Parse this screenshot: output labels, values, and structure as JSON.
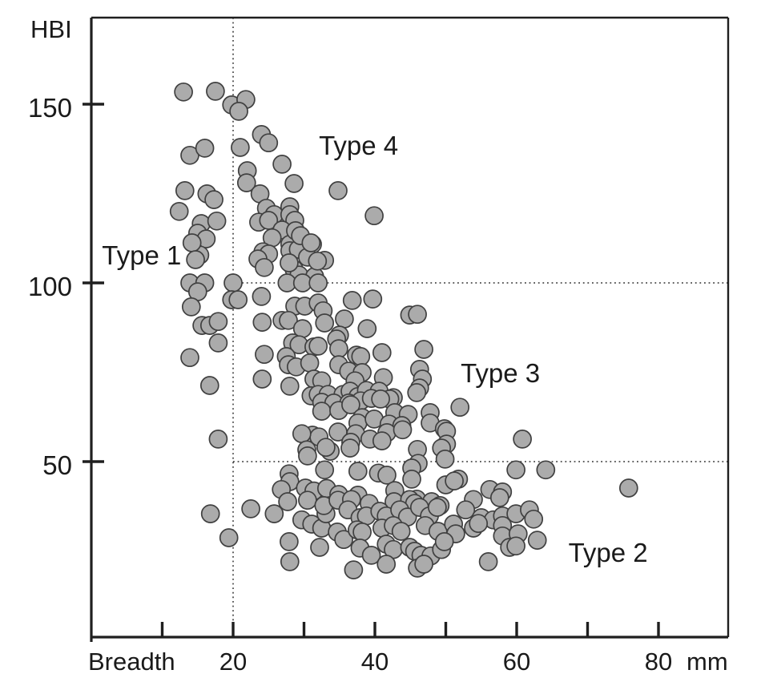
{
  "figure": {
    "y_axis_title": "HBI",
    "x_axis_title": "Breadth",
    "x_axis_unit": "mm"
  },
  "chart_data": {
    "type": "scatter",
    "title": "",
    "xlabel": "Breadth (mm)",
    "ylabel": "HBI",
    "xlim": [
      0,
      90
    ],
    "ylim": [
      0,
      174
    ],
    "x_ticks": [
      10,
      20,
      30,
      40,
      50,
      60,
      70,
      80
    ],
    "x_labeled_ticks": [
      20,
      40,
      60,
      80
    ],
    "y_ticks": [
      50,
      100,
      150
    ],
    "grid": {
      "style": "dotted",
      "vertical_x": [
        20
      ],
      "horizontal_y": [
        50,
        100
      ],
      "horizontal_start_x": 20
    },
    "legend": "none",
    "marker": {
      "shape": "circle",
      "radius_px": 11,
      "fill": "#ABABAB",
      "stroke": "#404040",
      "stroke_width": 1.7
    },
    "frame_color": "#1f1f1f",
    "annotations": [
      {
        "label": "Type 1",
        "x": 1.5,
        "y": 105.2
      },
      {
        "label": "Type 4",
        "x": 32.1,
        "y": 135.9
      },
      {
        "label": "Type 3",
        "x": 52.1,
        "y": 72.2
      },
      {
        "label": "Type 2",
        "x": 67.3,
        "y": 22.0
      }
    ],
    "points": [
      [
        13.0,
        153.4
      ],
      [
        17.5,
        153.6
      ],
      [
        19.8,
        149.8
      ],
      [
        21.8,
        151.3
      ],
      [
        20.8,
        148.0
      ],
      [
        24.0,
        141.5
      ],
      [
        25.0,
        139.2
      ],
      [
        13.9,
        135.7
      ],
      [
        16.0,
        137.7
      ],
      [
        21.0,
        137.9
      ],
      [
        26.9,
        133.2
      ],
      [
        22.0,
        131.4
      ],
      [
        21.9,
        128.0
      ],
      [
        23.8,
        124.9
      ],
      [
        28.6,
        127.8
      ],
      [
        34.8,
        125.8
      ],
      [
        39.9,
        118.8
      ],
      [
        24.7,
        120.9
      ],
      [
        25.8,
        119.1
      ],
      [
        28.0,
        121.3
      ],
      [
        23.6,
        117.0
      ],
      [
        25.0,
        117.5
      ],
      [
        28.0,
        119.1
      ],
      [
        28.7,
        117.5
      ],
      [
        26.9,
        114.8
      ],
      [
        25.5,
        112.6
      ],
      [
        29.3,
        113.0
      ],
      [
        28.0,
        110.8
      ],
      [
        29.8,
        110.3
      ],
      [
        24.2,
        108.7
      ],
      [
        25.0,
        108.1
      ],
      [
        28.0,
        109.0
      ],
      [
        29.2,
        109.4
      ],
      [
        31.2,
        110.8
      ],
      [
        32.9,
        106.3
      ],
      [
        23.5,
        106.7
      ],
      [
        24.4,
        104.3
      ],
      [
        28.6,
        103.8
      ],
      [
        29.3,
        102.2
      ],
      [
        31.5,
        101.8
      ],
      [
        27.9,
        105.6
      ],
      [
        30.5,
        107.2
      ],
      [
        31.9,
        106.1
      ],
      [
        13.2,
        125.8
      ],
      [
        16.3,
        124.9
      ],
      [
        17.3,
        123.3
      ],
      [
        12.4,
        120.0
      ],
      [
        15.5,
        116.6
      ],
      [
        17.7,
        117.3
      ],
      [
        15.0,
        113.9
      ],
      [
        16.2,
        112.3
      ],
      [
        15.3,
        107.8
      ],
      [
        28.8,
        114.6
      ],
      [
        29.5,
        113.2
      ],
      [
        31.0,
        111.2
      ],
      [
        14.2,
        111.2
      ],
      [
        14.7,
        106.5
      ],
      [
        13.9,
        100.0
      ],
      [
        16.0,
        100.0
      ],
      [
        20.0,
        100.0
      ],
      [
        15.0,
        97.5
      ],
      [
        14.1,
        93.3
      ],
      [
        19.8,
        95.3
      ],
      [
        20.7,
        95.3
      ],
      [
        15.6,
        88.1
      ],
      [
        16.7,
        88.1
      ],
      [
        17.9,
        89.2
      ],
      [
        17.9,
        83.2
      ],
      [
        13.9,
        79.1
      ],
      [
        16.7,
        71.3
      ],
      [
        17.9,
        56.3
      ],
      [
        27.6,
        100.0
      ],
      [
        29.8,
        100.0
      ],
      [
        32.0,
        100.0
      ],
      [
        24.0,
        96.2
      ],
      [
        36.8,
        95.1
      ],
      [
        39.7,
        95.5
      ],
      [
        28.7,
        93.5
      ],
      [
        30.1,
        93.5
      ],
      [
        32.0,
        94.4
      ],
      [
        32.7,
        92.2
      ],
      [
        44.9,
        91.0
      ],
      [
        46.0,
        91.2
      ],
      [
        24.1,
        89.0
      ],
      [
        26.9,
        89.5
      ],
      [
        27.8,
        89.5
      ],
      [
        29.8,
        87.2
      ],
      [
        32.9,
        88.8
      ],
      [
        35.7,
        89.9
      ],
      [
        38.9,
        87.2
      ],
      [
        35.0,
        85.4
      ],
      [
        28.4,
        83.2
      ],
      [
        29.3,
        82.7
      ],
      [
        31.4,
        82.1
      ],
      [
        32.0,
        82.3
      ],
      [
        34.6,
        84.3
      ],
      [
        34.9,
        81.6
      ],
      [
        37.4,
        79.8
      ],
      [
        38.0,
        79.4
      ],
      [
        41.0,
        80.5
      ],
      [
        46.9,
        81.4
      ],
      [
        27.5,
        79.4
      ],
      [
        27.8,
        77.1
      ],
      [
        28.9,
        76.5
      ],
      [
        30.8,
        77.6
      ],
      [
        34.9,
        77.1
      ],
      [
        36.3,
        75.3
      ],
      [
        38.2,
        74.9
      ],
      [
        46.3,
        75.8
      ],
      [
        31.4,
        73.1
      ],
      [
        32.5,
        72.6
      ],
      [
        37.2,
        72.6
      ],
      [
        24.4,
        80.0
      ],
      [
        24.1,
        73.1
      ],
      [
        28.0,
        71.1
      ],
      [
        41.2,
        73.5
      ],
      [
        46.7,
        73.1
      ],
      [
        46.3,
        70.6
      ],
      [
        42.6,
        67.9
      ],
      [
        31.0,
        68.4
      ],
      [
        32.0,
        68.8
      ],
      [
        33.4,
        68.8
      ],
      [
        35.5,
        68.8
      ],
      [
        36.5,
        69.7
      ],
      [
        37.6,
        68.2
      ],
      [
        38.8,
        69.9
      ],
      [
        40.6,
        69.7
      ],
      [
        42.1,
        67.5
      ],
      [
        45.9,
        69.3
      ],
      [
        32.5,
        66.6
      ],
      [
        34.2,
        66.4
      ],
      [
        36.3,
        66.4
      ],
      [
        38.0,
        67.0
      ],
      [
        39.5,
        67.7
      ],
      [
        40.8,
        67.5
      ],
      [
        52.0,
        65.2
      ],
      [
        32.5,
        64.1
      ],
      [
        34.9,
        64.3
      ],
      [
        36.6,
        65.9
      ],
      [
        42.8,
        63.7
      ],
      [
        44.7,
        63.2
      ],
      [
        47.8,
        63.7
      ],
      [
        38.2,
        62.3
      ],
      [
        37.6,
        60.8
      ],
      [
        39.9,
        61.9
      ],
      [
        42.0,
        60.5
      ],
      [
        43.8,
        60.1
      ],
      [
        47.8,
        60.8
      ],
      [
        41.7,
        58.1
      ],
      [
        43.9,
        58.9
      ],
      [
        49.8,
        59.2
      ],
      [
        34.8,
        58.3
      ],
      [
        37.3,
        57.8
      ],
      [
        31.2,
        57.4
      ],
      [
        32.1,
        56.9
      ],
      [
        29.7,
        57.8
      ],
      [
        36.6,
        55.4
      ],
      [
        39.3,
        56.3
      ],
      [
        41.0,
        55.8
      ],
      [
        50.1,
        58.5
      ],
      [
        50.1,
        54.9
      ],
      [
        60.8,
        56.3
      ],
      [
        36.5,
        53.8
      ],
      [
        46.0,
        53.4
      ],
      [
        49.4,
        53.8
      ],
      [
        30.4,
        53.3
      ],
      [
        33.7,
        52.9
      ],
      [
        30.5,
        51.6
      ],
      [
        33.1,
        54.0
      ],
      [
        49.9,
        50.7
      ],
      [
        46.1,
        49.5
      ],
      [
        45.2,
        48.2
      ],
      [
        37.6,
        47.3
      ],
      [
        40.5,
        46.8
      ],
      [
        41.7,
        46.2
      ],
      [
        32.9,
        47.7
      ],
      [
        27.9,
        46.6
      ],
      [
        28.0,
        44.4
      ],
      [
        26.8,
        42.2
      ],
      [
        30.2,
        42.6
      ],
      [
        31.4,
        41.8
      ],
      [
        33.2,
        42.5
      ],
      [
        45.2,
        45.1
      ],
      [
        51.8,
        45.1
      ],
      [
        59.9,
        47.7
      ],
      [
        64.1,
        47.7
      ],
      [
        56.2,
        42.2
      ],
      [
        58.0,
        41.5
      ],
      [
        50.0,
        43.5
      ],
      [
        51.2,
        44.6
      ],
      [
        42.8,
        41.9
      ],
      [
        34.9,
        40.8
      ],
      [
        37.6,
        40.6
      ],
      [
        45.9,
        39.5
      ],
      [
        75.8,
        42.6
      ],
      [
        16.8,
        35.4
      ],
      [
        19.4,
        28.7
      ],
      [
        22.5,
        36.8
      ],
      [
        25.8,
        35.4
      ],
      [
        27.7,
        38.8
      ],
      [
        28.0,
        22.0
      ],
      [
        27.9,
        27.6
      ],
      [
        29.7,
        33.7
      ],
      [
        31.1,
        32.5
      ],
      [
        32.2,
        26.0
      ],
      [
        32.5,
        31.4
      ],
      [
        33.1,
        35.4
      ],
      [
        30.5,
        39.2
      ],
      [
        32.8,
        37.7
      ],
      [
        34.8,
        39.2
      ],
      [
        36.7,
        39.4
      ],
      [
        39.2,
        38.3
      ],
      [
        42.7,
        38.8
      ],
      [
        44.9,
        39.4
      ],
      [
        45.6,
        38.3
      ],
      [
        48.0,
        38.8
      ],
      [
        53.9,
        39.4
      ],
      [
        57.6,
        39.9
      ],
      [
        49.2,
        37.7
      ],
      [
        36.2,
        36.5
      ],
      [
        37.9,
        34.3
      ],
      [
        38.8,
        34.8
      ],
      [
        40.7,
        36.1
      ],
      [
        41.6,
        34.8
      ],
      [
        43.5,
        36.5
      ],
      [
        44.6,
        34.5
      ],
      [
        46.3,
        37.2
      ],
      [
        47.7,
        34.8
      ],
      [
        48.8,
        37.2
      ],
      [
        52.8,
        36.5
      ],
      [
        55.0,
        34.3
      ],
      [
        56.7,
        33.7
      ],
      [
        58.0,
        34.8
      ],
      [
        59.9,
        35.4
      ],
      [
        61.8,
        36.5
      ],
      [
        62.4,
        33.9
      ],
      [
        34.7,
        30.3
      ],
      [
        35.6,
        28.2
      ],
      [
        37.5,
        30.9
      ],
      [
        38.2,
        30.3
      ],
      [
        41.0,
        31.4
      ],
      [
        42.6,
        32.1
      ],
      [
        43.7,
        30.5
      ],
      [
        47.1,
        32.1
      ],
      [
        48.9,
        30.5
      ],
      [
        51.1,
        32.5
      ],
      [
        51.4,
        29.8
      ],
      [
        53.9,
        31.4
      ],
      [
        54.6,
        32.7
      ],
      [
        58.0,
        32.1
      ],
      [
        58.0,
        29.2
      ],
      [
        60.2,
        29.8
      ],
      [
        62.9,
        28.0
      ],
      [
        37.9,
        25.8
      ],
      [
        39.5,
        23.8
      ],
      [
        41.6,
        26.9
      ],
      [
        42.6,
        25.4
      ],
      [
        44.9,
        26.0
      ],
      [
        45.6,
        24.9
      ],
      [
        46.5,
        23.8
      ],
      [
        47.9,
        23.6
      ],
      [
        49.4,
        25.4
      ],
      [
        49.8,
        27.6
      ],
      [
        56.0,
        22.0
      ],
      [
        59.0,
        26.0
      ],
      [
        59.9,
        26.4
      ],
      [
        37.0,
        19.7
      ],
      [
        41.6,
        21.3
      ],
      [
        46.0,
        20.2
      ],
      [
        46.9,
        21.3
      ]
    ]
  }
}
